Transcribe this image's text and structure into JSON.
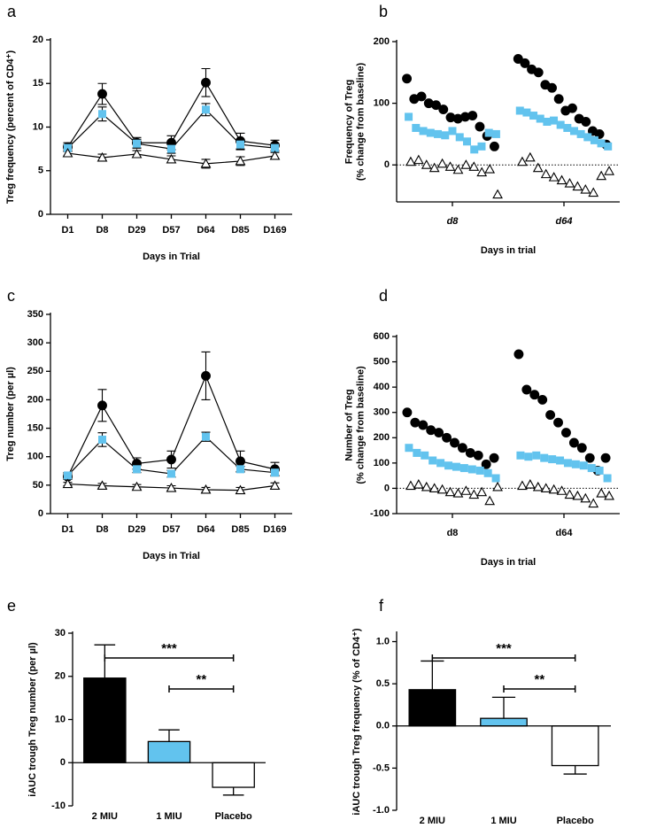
{
  "chart_data": [
    {
      "type": "line",
      "panel": "a",
      "ylabel": [
        "Treg frequency (percent of CD4⁺)"
      ],
      "xlabel": "Days in Trial",
      "categories": [
        "D1",
        "D8",
        "D29",
        "D57",
        "D64",
        "D85",
        "D169"
      ],
      "ylim": [
        0,
        20
      ],
      "yticks": [
        0,
        5,
        10,
        15,
        20
      ],
      "series": [
        {
          "color": "#000000",
          "marker": "circle",
          "values": [
            7.7,
            13.8,
            8.2,
            8.2,
            15.1,
            8.4,
            7.9
          ],
          "errors": [
            0.5,
            1.2,
            0.6,
            0.8,
            1.6,
            0.9,
            0.6
          ]
        },
        {
          "color": "#62c3ee",
          "marker": "square",
          "values": [
            7.6,
            11.5,
            8.1,
            7.5,
            12.0,
            8.0,
            7.6
          ],
          "errors": [
            0.4,
            0.8,
            0.5,
            0.5,
            0.7,
            0.6,
            0.5
          ]
        },
        {
          "color": "#ffffff",
          "marker": "triangle",
          "values": [
            7.0,
            6.5,
            6.9,
            6.3,
            5.8,
            6.1,
            6.7
          ],
          "errors": [
            0.3,
            0.4,
            0.4,
            0.4,
            0.5,
            0.5,
            0.4
          ]
        }
      ]
    },
    {
      "type": "strip",
      "panel": "b",
      "ylabel": [
        "Frequency of Treg",
        "(% change from baseline)"
      ],
      "xlabel": "Days in trial",
      "categories": [
        "d8",
        "d64"
      ],
      "ylim": [
        -60,
        200
      ],
      "yticks": [
        0,
        100,
        200
      ],
      "zero_line": true,
      "series": [
        {
          "color": "#000000",
          "marker": "circle",
          "values": [
            [
              140,
              107,
              111,
              100,
              97,
              90,
              77,
              75,
              78,
              80,
              62,
              47,
              30
            ],
            [
              172,
              165,
              155,
              150,
              130,
              125,
              107,
              88,
              92,
              75,
              70,
              55,
              50,
              33
            ]
          ]
        },
        {
          "color": "#62c3ee",
          "marker": "square",
          "values": [
            [
              78,
              60,
              55,
              52,
              50,
              48,
              55,
              45,
              38,
              25,
              30,
              52,
              50
            ],
            [
              88,
              85,
              80,
              75,
              70,
              72,
              65,
              60,
              55,
              50,
              45,
              40,
              35,
              30
            ]
          ]
        },
        {
          "color": "#ffffff",
          "marker": "triangle",
          "values": [
            [
              5,
              8,
              0,
              -5,
              2,
              -3,
              -8,
              0,
              -3,
              -12,
              -7,
              -48
            ],
            [
              5,
              12,
              -5,
              -15,
              -20,
              -25,
              -30,
              -35,
              -40,
              -45,
              -18,
              -10
            ]
          ]
        }
      ]
    },
    {
      "type": "line",
      "panel": "c",
      "ylabel": [
        "Treg number (per µl)"
      ],
      "xlabel": "Days in Trial",
      "categories": [
        "D1",
        "D8",
        "D29",
        "D57",
        "D64",
        "D85",
        "D169"
      ],
      "ylim": [
        0,
        350
      ],
      "yticks": [
        0,
        50,
        100,
        150,
        200,
        250,
        300,
        350
      ],
      "series": [
        {
          "color": "#000000",
          "marker": "circle",
          "values": [
            65,
            190,
            88,
            95,
            242,
            92,
            78
          ],
          "errors": [
            5,
            28,
            10,
            15,
            42,
            18,
            12
          ]
        },
        {
          "color": "#62c3ee",
          "marker": "square",
          "values": [
            67,
            130,
            78,
            70,
            135,
            78,
            72
          ],
          "errors": [
            5,
            12,
            6,
            6,
            8,
            5,
            5
          ]
        },
        {
          "color": "#ffffff",
          "marker": "triangle",
          "values": [
            52,
            49,
            47,
            45,
            42,
            41,
            49
          ],
          "errors": [
            3,
            4,
            4,
            4,
            4,
            5,
            5
          ]
        }
      ]
    },
    {
      "type": "strip",
      "panel": "d",
      "ylabel": [
        "Number of Treg",
        "(% change from baseline)"
      ],
      "xlabel": "Days in trial",
      "categories": [
        "d8",
        "d64"
      ],
      "ylim": [
        -100,
        600
      ],
      "yticks": [
        -100,
        0,
        100,
        200,
        300,
        400,
        500,
        600
      ],
      "zero_line": true,
      "series": [
        {
          "color": "#000000",
          "marker": "circle",
          "values": [
            [
              300,
              260,
              250,
              230,
              220,
              200,
              180,
              160,
              140,
              130,
              95,
              120
            ],
            [
              530,
              390,
              370,
              350,
              290,
              260,
              220,
              180,
              160,
              120,
              70,
              120
            ]
          ]
        },
        {
          "color": "#62c3ee",
          "marker": "square",
          "values": [
            [
              160,
              140,
              130,
              110,
              100,
              90,
              85,
              80,
              75,
              70,
              60,
              40
            ],
            [
              130,
              125,
              130,
              120,
              115,
              110,
              100,
              95,
              90,
              80,
              70,
              40
            ]
          ]
        },
        {
          "color": "#ffffff",
          "marker": "triangle",
          "values": [
            [
              10,
              15,
              5,
              0,
              -5,
              -15,
              -20,
              -10,
              -25,
              -15,
              -50,
              5
            ],
            [
              10,
              15,
              5,
              0,
              -5,
              -10,
              -25,
              -30,
              -40,
              -60,
              -20,
              -30
            ]
          ]
        }
      ]
    },
    {
      "type": "bar",
      "panel": "e",
      "ylabel": [
        "iAUC trough Treg number (per µl)"
      ],
      "categories": [
        "2 MIU",
        "1 MIU",
        "Placebo"
      ],
      "colors": [
        "#000000",
        "#62c3ee",
        "#ffffff"
      ],
      "values": [
        19.6,
        4.9,
        -5.7
      ],
      "errors": [
        7.7,
        2.7,
        1.8
      ],
      "ylim": [
        -10,
        30
      ],
      "yticks": [
        -10,
        0,
        10,
        20,
        30
      ],
      "annotations": [
        {
          "label": "***",
          "from": "2 MIU",
          "to": "Placebo"
        },
        {
          "label": "**",
          "from": "1 MIU",
          "to": "Placebo"
        }
      ]
    },
    {
      "type": "bar",
      "panel": "f",
      "ylabel": [
        "iAUC trough Treg frequency (% of CD4⁺)"
      ],
      "categories": [
        "2 MIU",
        "1 MIU",
        "Placebo"
      ],
      "colors": [
        "#000000",
        "#62c3ee",
        "#ffffff"
      ],
      "values": [
        0.43,
        0.09,
        -0.47
      ],
      "errors": [
        0.34,
        0.25,
        0.1
      ],
      "ylim": [
        -1.0,
        1.1
      ],
      "yticks": [
        {
          "value": -1,
          "label": "-1.0"
        },
        {
          "value": -0.5,
          "label": "-0.5"
        },
        {
          "value": 0,
          "label": "0.0"
        },
        {
          "value": 0.5,
          "label": "0.5"
        },
        {
          "value": 1,
          "label": "1.0"
        }
      ],
      "annotations": [
        {
          "label": "***",
          "from": "2 MIU",
          "to": "Placebo"
        },
        {
          "label": "**",
          "from": "1 MIU",
          "to": "Placebo"
        }
      ]
    }
  ]
}
